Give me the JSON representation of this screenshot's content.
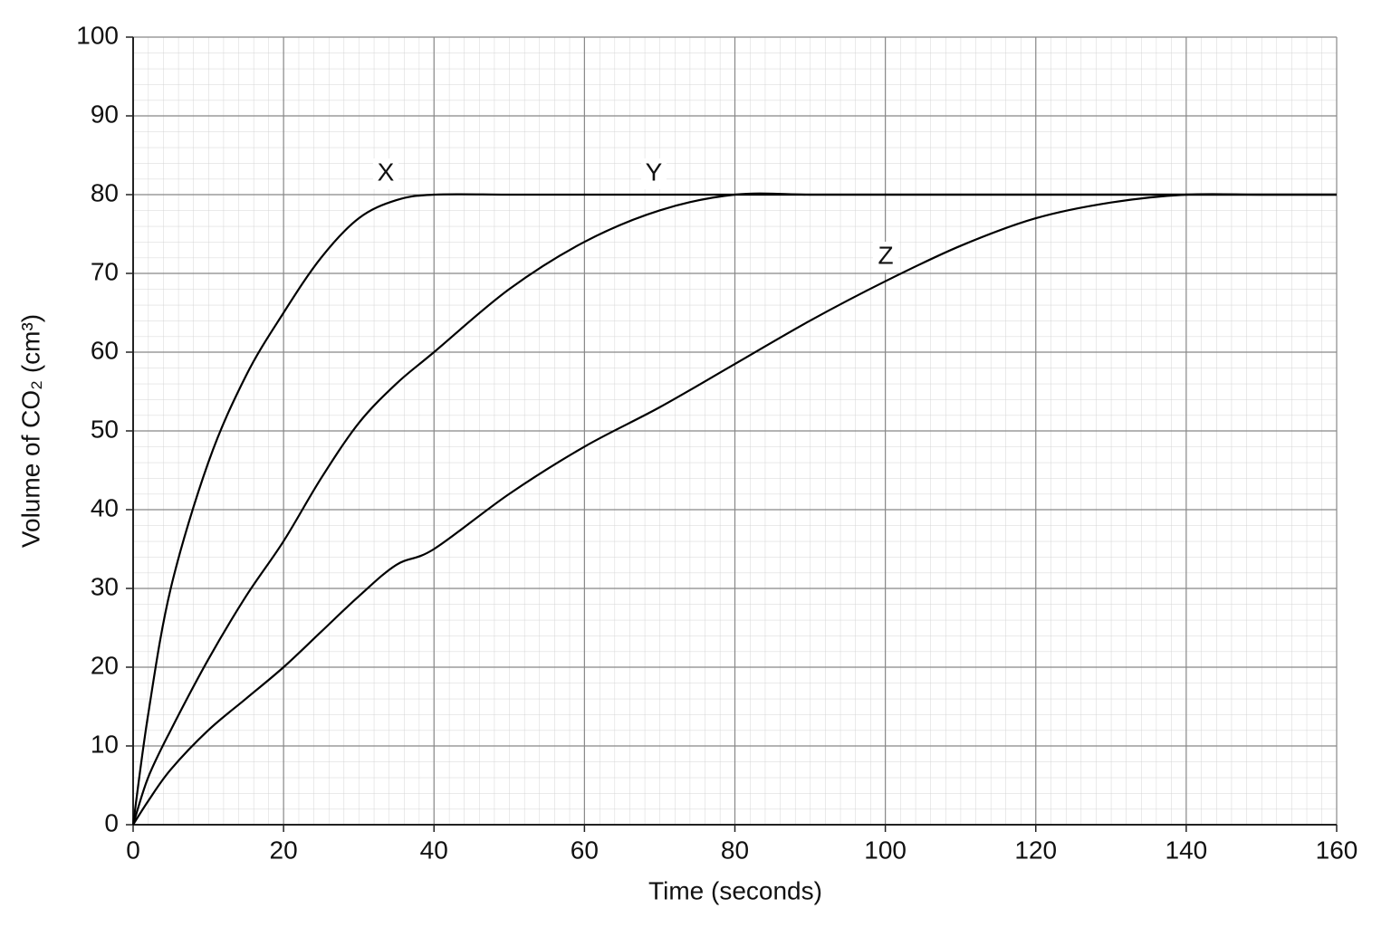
{
  "chart_data": {
    "type": "line",
    "xlabel": "Time (seconds)",
    "ylabel": "Volume of CO₂ (cm³)",
    "x": [
      0,
      2,
      5,
      10,
      15,
      20,
      25,
      30,
      35,
      40,
      50,
      60,
      70,
      80,
      90,
      100,
      110,
      120,
      130,
      140,
      150,
      160
    ],
    "series": [
      {
        "name": "X",
        "color": "#000000",
        "values": [
          0,
          14,
          30,
          46,
          57,
          65,
          72,
          77,
          79.3,
          80,
          80,
          80,
          80,
          80,
          80,
          80,
          80,
          80,
          80,
          80,
          80,
          80
        ]
      },
      {
        "name": "Y",
        "color": "#000000",
        "values": [
          0,
          6,
          12,
          21,
          29,
          36,
          44,
          51,
          56,
          60,
          68,
          74,
          78,
          80,
          80,
          80,
          80,
          80,
          80,
          80,
          80,
          80
        ]
      },
      {
        "name": "Z",
        "color": "#000000",
        "values": [
          0,
          3,
          7,
          12,
          16,
          20,
          24.5,
          29,
          33,
          35,
          42,
          48,
          53,
          58.5,
          64,
          69,
          73.5,
          77,
          79,
          80,
          80,
          80
        ]
      }
    ],
    "xlim": [
      0,
      160
    ],
    "xticks": [
      0,
      20,
      40,
      60,
      80,
      100,
      120,
      140,
      160
    ],
    "ylim": [
      0,
      100
    ],
    "yticks": [
      0,
      10,
      20,
      30,
      40,
      50,
      60,
      70,
      80,
      90,
      100
    ],
    "grid": true
  }
}
